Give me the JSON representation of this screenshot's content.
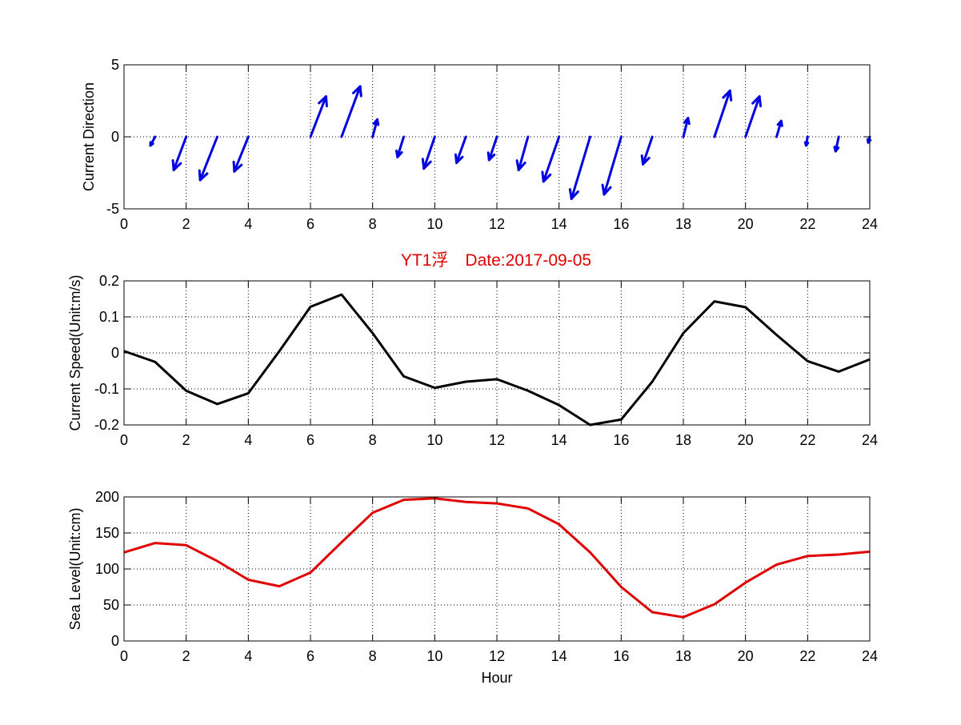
{
  "figure": {
    "title": "YT1浮　Date:2017-09-05",
    "title_color": "#e00000"
  },
  "chart_data": [
    {
      "type": "quiver",
      "title": "",
      "xlabel": "",
      "ylabel": "Current Direction",
      "xlim": [
        0,
        24
      ],
      "ylim": [
        -5,
        5
      ],
      "xticks": [
        0,
        2,
        4,
        6,
        8,
        10,
        12,
        14,
        16,
        18,
        20,
        22,
        24
      ],
      "yticks": [
        -5,
        0,
        5
      ],
      "grid": true,
      "color": "#0000e0",
      "series": [
        {
          "x": [
            1,
            2,
            3,
            4,
            5,
            6,
            7,
            8,
            9,
            10,
            11,
            12,
            13,
            14,
            15,
            16,
            17,
            18,
            19,
            20,
            21,
            22,
            23,
            24
          ],
          "u": [
            -0.15,
            -0.4,
            -0.55,
            -0.45,
            0,
            0.5,
            0.6,
            0.15,
            -0.2,
            -0.35,
            -0.3,
            -0.25,
            -0.3,
            -0.5,
            -0.6,
            -0.55,
            -0.3,
            0.15,
            0.5,
            0.45,
            0.15,
            -0.05,
            -0.1,
            -0.05
          ],
          "v": [
            -0.6,
            -2.3,
            -3.0,
            -2.4,
            0,
            2.8,
            3.5,
            1.2,
            -1.4,
            -2.2,
            -1.8,
            -1.6,
            -2.3,
            -3.1,
            -4.3,
            -4.0,
            -1.9,
            1.3,
            3.2,
            2.8,
            1.1,
            -0.6,
            -1.0,
            -0.4
          ]
        }
      ]
    },
    {
      "type": "line",
      "title": "",
      "xlabel": "",
      "ylabel": "Current Speed(Unit:m/s)",
      "xlim": [
        0,
        24
      ],
      "ylim": [
        -0.2,
        0.2
      ],
      "xticks": [
        0,
        2,
        4,
        6,
        8,
        10,
        12,
        14,
        16,
        18,
        20,
        22,
        24
      ],
      "yticks": [
        -0.2,
        -0.1,
        0,
        0.1,
        0.2
      ],
      "grid": true,
      "series": [
        {
          "color": "#000000",
          "x": [
            0,
            1,
            2,
            3,
            4,
            5,
            6,
            7,
            8,
            9,
            10,
            11,
            12,
            13,
            14,
            15,
            16,
            17,
            18,
            19,
            20,
            21,
            22,
            23,
            24
          ],
          "values": [
            0.005,
            -0.025,
            -0.105,
            -0.142,
            -0.112,
            0.005,
            0.128,
            0.162,
            0.055,
            -0.065,
            -0.097,
            -0.08,
            -0.073,
            -0.105,
            -0.145,
            -0.2,
            -0.185,
            -0.08,
            0.055,
            0.143,
            0.127,
            0.05,
            -0.023,
            -0.052,
            -0.018
          ]
        }
      ]
    },
    {
      "type": "line",
      "title": "",
      "xlabel": "Hour",
      "ylabel": "Sea Level(Unit:cm)",
      "xlim": [
        0,
        24
      ],
      "ylim": [
        0,
        200
      ],
      "xticks": [
        0,
        2,
        4,
        6,
        8,
        10,
        12,
        14,
        16,
        18,
        20,
        22,
        24
      ],
      "yticks": [
        0,
        50,
        100,
        150,
        200
      ],
      "grid": true,
      "series": [
        {
          "color": "#e00000",
          "x": [
            0,
            1,
            2,
            3,
            4,
            5,
            6,
            7,
            8,
            9,
            10,
            11,
            12,
            13,
            14,
            15,
            16,
            17,
            18,
            19,
            20,
            21,
            22,
            23,
            24
          ],
          "values": [
            123,
            136,
            133,
            111,
            85,
            76,
            95,
            137,
            178,
            196,
            198,
            193,
            191,
            184,
            162,
            123,
            75,
            40,
            33,
            51,
            81,
            106,
            118,
            120,
            124
          ]
        }
      ]
    }
  ]
}
